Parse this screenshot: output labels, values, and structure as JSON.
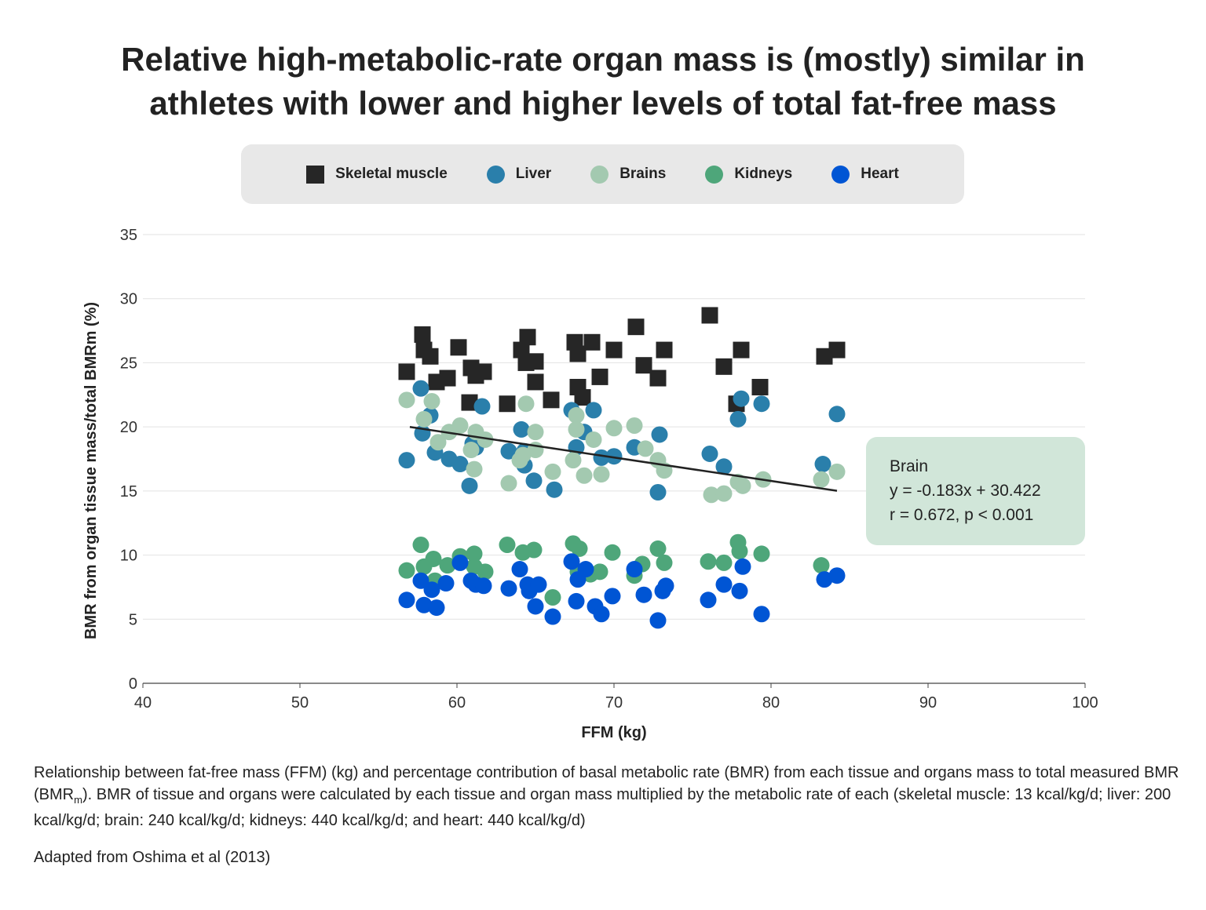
{
  "title": {
    "line1": "Relative high-metabolic-rate organ mass is (mostly) similar in",
    "line2": "athletes with lower and higher levels of total fat-free mass"
  },
  "annotation": {
    "title": "Brain",
    "equation": "y = -0.183x + 30.422",
    "stats": "r = 0.672, p < 0.001"
  },
  "caption": {
    "part1": "Relationship between fat-free mass (FFM) (kg) and percentage contribution of basal metabolic rate (BMR) from each tissue and organs mass to total measured BMR (BMR",
    "sub": "m",
    "part2": "). BMR of tissue and organs were calculated by each tissue and organ mass multiplied by the metabolic rate of each (skeletal muscle: 13 kcal/kg/d; liver: 200 kcal/kg/d; brain: 240 kcal/kg/d; kidneys: 440 kcal/kg/d; and heart: 440 kcal/kg/d)"
  },
  "source": "Adapted from Oshima et al (2013)",
  "chart_data": {
    "type": "scatter",
    "xlabel": "FFM (kg)",
    "ylabel": "BMR from organ tissue mass/total BMRm (%)",
    "xlim": [
      40,
      100
    ],
    "ylim": [
      0,
      35
    ],
    "xticks": [
      "40",
      "50",
      "60",
      "70",
      "80",
      "90",
      "100"
    ],
    "yticks": [
      "0",
      "5",
      "10",
      "15",
      "20",
      "25",
      "30",
      "35"
    ],
    "grid": "horizontal",
    "legend_position": "top",
    "series": [
      {
        "name": "Skeletal muscle",
        "marker": "square",
        "color": "#262626",
        "points": [
          [
            56.8,
            24.3
          ],
          [
            57.8,
            27.2
          ],
          [
            57.9,
            26.0
          ],
          [
            58.3,
            25.5
          ],
          [
            58.7,
            23.5
          ],
          [
            59.4,
            23.8
          ],
          [
            60.1,
            26.2
          ],
          [
            60.9,
            24.6
          ],
          [
            60.8,
            21.9
          ],
          [
            61.2,
            24.0
          ],
          [
            61.7,
            24.3
          ],
          [
            63.2,
            21.8
          ],
          [
            64.1,
            26.0
          ],
          [
            64.5,
            27.0
          ],
          [
            64.4,
            25.0
          ],
          [
            65.0,
            25.1
          ],
          [
            65.0,
            23.5
          ],
          [
            66.0,
            22.1
          ],
          [
            67.5,
            26.6
          ],
          [
            67.7,
            25.7
          ],
          [
            67.7,
            23.1
          ],
          [
            68.0,
            22.3
          ],
          [
            68.6,
            26.6
          ],
          [
            69.1,
            23.9
          ],
          [
            70.0,
            26.0
          ],
          [
            71.4,
            27.8
          ],
          [
            71.9,
            24.8
          ],
          [
            72.8,
            23.8
          ],
          [
            73.2,
            26.0
          ],
          [
            76.1,
            28.7
          ],
          [
            77.0,
            24.7
          ],
          [
            77.8,
            21.8
          ],
          [
            78.1,
            26.0
          ],
          [
            79.3,
            23.1
          ],
          [
            83.4,
            25.5
          ],
          [
            84.2,
            26.0
          ]
        ]
      },
      {
        "name": "Liver",
        "marker": "circle",
        "color": "#2a7fab",
        "points": [
          [
            56.8,
            17.4
          ],
          [
            57.7,
            23.0
          ],
          [
            57.8,
            19.5
          ],
          [
            58.3,
            20.9
          ],
          [
            58.6,
            18.0
          ],
          [
            59.5,
            17.5
          ],
          [
            60.2,
            17.1
          ],
          [
            60.8,
            15.4
          ],
          [
            61.0,
            18.7
          ],
          [
            61.6,
            21.6
          ],
          [
            61.2,
            18.4
          ],
          [
            63.3,
            18.1
          ],
          [
            64.1,
            19.8
          ],
          [
            64.3,
            18.1
          ],
          [
            64.3,
            17.0
          ],
          [
            64.9,
            15.8
          ],
          [
            66.2,
            15.1
          ],
          [
            67.3,
            21.3
          ],
          [
            67.6,
            18.4
          ],
          [
            68.1,
            19.6
          ],
          [
            68.7,
            21.3
          ],
          [
            69.2,
            17.6
          ],
          [
            70.0,
            17.7
          ],
          [
            71.3,
            18.4
          ],
          [
            72.8,
            14.9
          ],
          [
            72.9,
            19.4
          ],
          [
            76.1,
            17.9
          ],
          [
            77.0,
            16.9
          ],
          [
            77.9,
            20.6
          ],
          [
            78.1,
            22.2
          ],
          [
            79.4,
            21.8
          ],
          [
            83.3,
            17.1
          ],
          [
            84.2,
            21.0
          ]
        ]
      },
      {
        "name": "Brains",
        "marker": "circle",
        "color": "#a3c9b0",
        "points": [
          [
            56.8,
            22.1
          ],
          [
            57.9,
            20.6
          ],
          [
            58.4,
            22.0
          ],
          [
            58.8,
            18.8
          ],
          [
            59.5,
            19.6
          ],
          [
            60.2,
            20.1
          ],
          [
            60.9,
            18.2
          ],
          [
            61.1,
            16.7
          ],
          [
            61.2,
            19.6
          ],
          [
            61.8,
            19.0
          ],
          [
            63.3,
            15.6
          ],
          [
            64.4,
            21.8
          ],
          [
            64.0,
            17.4
          ],
          [
            64.2,
            17.8
          ],
          [
            65.0,
            19.6
          ],
          [
            65.0,
            18.2
          ],
          [
            66.1,
            16.5
          ],
          [
            67.4,
            17.4
          ],
          [
            67.6,
            20.9
          ],
          [
            67.6,
            19.8
          ],
          [
            68.1,
            16.2
          ],
          [
            68.7,
            19.0
          ],
          [
            69.2,
            16.3
          ],
          [
            70.0,
            19.9
          ],
          [
            71.3,
            20.1
          ],
          [
            72.0,
            18.3
          ],
          [
            72.8,
            17.4
          ],
          [
            73.2,
            16.6
          ],
          [
            76.2,
            14.7
          ],
          [
            77.0,
            14.8
          ],
          [
            77.9,
            15.7
          ],
          [
            78.2,
            15.4
          ],
          [
            79.5,
            15.9
          ],
          [
            83.2,
            15.9
          ],
          [
            84.2,
            16.5
          ]
        ]
      },
      {
        "name": "Kidneys",
        "marker": "circle",
        "color": "#4ea67a",
        "points": [
          [
            56.8,
            8.8
          ],
          [
            57.7,
            10.8
          ],
          [
            57.9,
            9.1
          ],
          [
            58.5,
            9.7
          ],
          [
            58.6,
            8.0
          ],
          [
            59.4,
            9.2
          ],
          [
            60.2,
            9.9
          ],
          [
            61.1,
            10.1
          ],
          [
            61.1,
            9.1
          ],
          [
            61.8,
            8.7
          ],
          [
            63.2,
            10.8
          ],
          [
            64.2,
            10.2
          ],
          [
            64.9,
            10.4
          ],
          [
            66.1,
            6.7
          ],
          [
            67.4,
            10.9
          ],
          [
            67.8,
            10.5
          ],
          [
            67.7,
            8.7
          ],
          [
            68.5,
            8.5
          ],
          [
            69.1,
            8.7
          ],
          [
            69.9,
            10.2
          ],
          [
            71.3,
            8.4
          ],
          [
            71.8,
            9.3
          ],
          [
            72.8,
            10.5
          ],
          [
            73.2,
            9.4
          ],
          [
            76.0,
            9.5
          ],
          [
            77.0,
            9.4
          ],
          [
            77.9,
            11.0
          ],
          [
            78.0,
            10.3
          ],
          [
            79.4,
            10.1
          ],
          [
            83.2,
            9.2
          ]
        ]
      },
      {
        "name": "Heart",
        "marker": "circle",
        "color": "#0055d4",
        "points": [
          [
            56.8,
            6.5
          ],
          [
            57.7,
            8.0
          ],
          [
            57.9,
            6.1
          ],
          [
            58.4,
            7.3
          ],
          [
            58.7,
            5.9
          ],
          [
            59.3,
            7.8
          ],
          [
            60.2,
            9.4
          ],
          [
            60.9,
            8.0
          ],
          [
            61.2,
            7.7
          ],
          [
            61.7,
            7.6
          ],
          [
            63.3,
            7.4
          ],
          [
            64.0,
            8.9
          ],
          [
            64.5,
            7.7
          ],
          [
            64.6,
            7.2
          ],
          [
            65.2,
            7.7
          ],
          [
            65.0,
            6.0
          ],
          [
            66.1,
            5.2
          ],
          [
            67.3,
            9.5
          ],
          [
            67.7,
            8.1
          ],
          [
            67.6,
            6.4
          ],
          [
            68.2,
            8.9
          ],
          [
            68.8,
            6.0
          ],
          [
            69.2,
            5.4
          ],
          [
            69.9,
            6.8
          ],
          [
            71.3,
            8.9
          ],
          [
            71.9,
            6.9
          ],
          [
            72.8,
            4.9
          ],
          [
            73.1,
            7.2
          ],
          [
            73.3,
            7.6
          ],
          [
            76.0,
            6.5
          ],
          [
            77.0,
            7.7
          ],
          [
            78.2,
            9.1
          ],
          [
            78.0,
            7.2
          ],
          [
            79.4,
            5.4
          ],
          [
            83.4,
            8.1
          ],
          [
            84.2,
            8.4
          ]
        ]
      }
    ],
    "trendline": {
      "series": "Brains",
      "slope": -0.183,
      "intercept": 30.422,
      "x_range": [
        57,
        84.2
      ],
      "color": "#222222"
    }
  }
}
